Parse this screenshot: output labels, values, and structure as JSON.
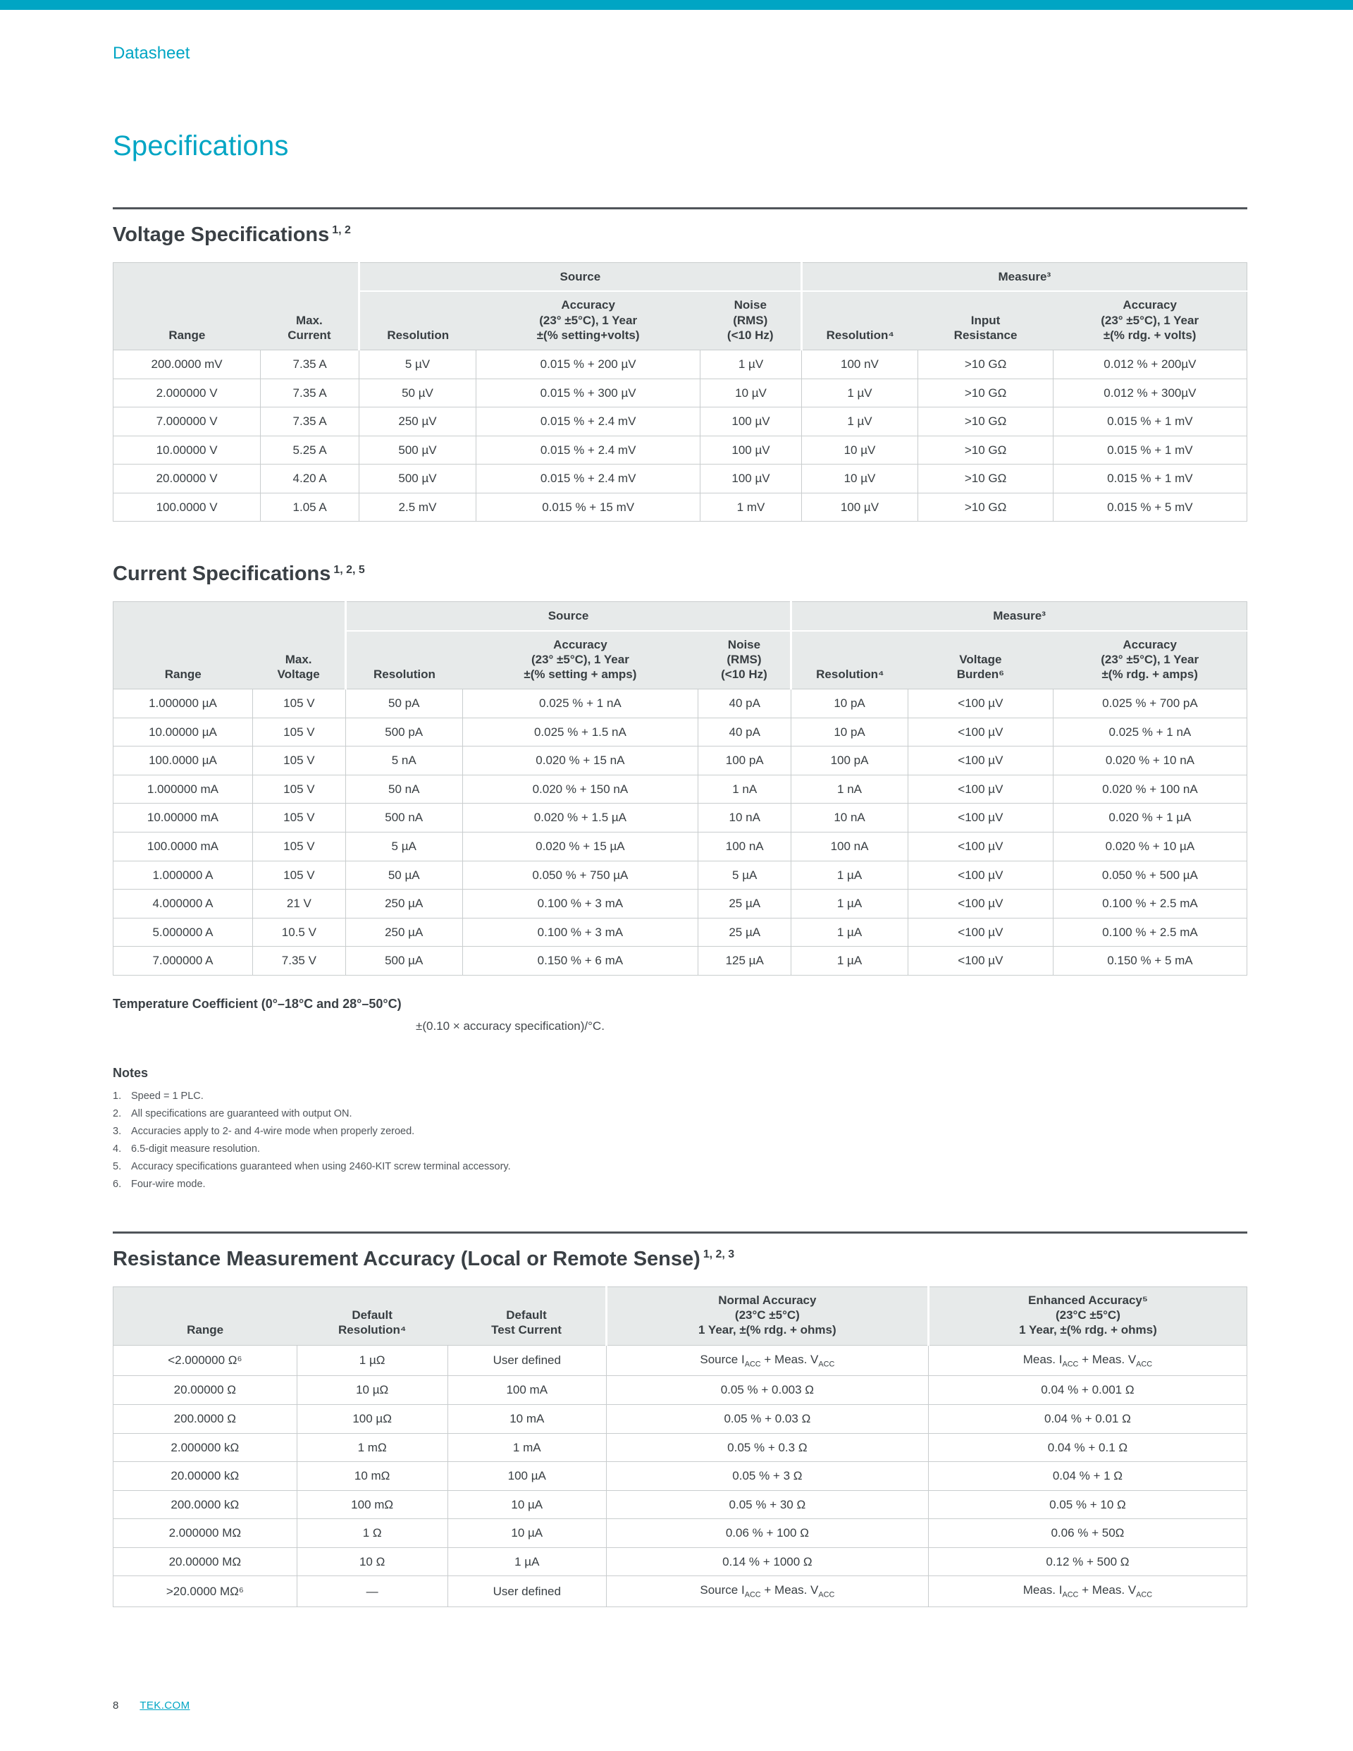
{
  "page": {
    "top_label": "Datasheet",
    "title": "Specifications",
    "footer": {
      "page_number": "8",
      "site_link": "TEK.COM"
    }
  },
  "colors": {
    "accent": "#00A5C4",
    "table_header_fill": "#E7EAEA",
    "table_border": "#C9CDCE",
    "rule": "#50555A",
    "text": "#383E42"
  },
  "voltage_table": {
    "heading": "Voltage Specifications",
    "heading_sup": "1, 2",
    "group_source": "Source",
    "group_measure": "Measure³",
    "headers": [
      "Range",
      "Max.\nCurrent",
      "Resolution",
      "Accuracy\n(23° ±5°C), 1 Year\n±(% setting+volts)",
      "Noise\n(RMS)\n(<10 Hz)",
      "Resolution⁴",
      "Input\nResistance",
      "Accuracy\n(23° ±5°C), 1 Year\n±(% rdg. + volts)"
    ],
    "rows": [
      [
        "200.0000 mV",
        "7.35 A",
        "5 µV",
        "0.015 % + 200 µV",
        "1 µV",
        "100 nV",
        ">10 GΩ",
        "0.012 % + 200µV"
      ],
      [
        "2.000000 V",
        "7.35 A",
        "50 µV",
        "0.015 % + 300 µV",
        "10 µV",
        "1 µV",
        ">10 GΩ",
        "0.012 % + 300µV"
      ],
      [
        "7.000000 V",
        "7.35 A",
        "250 µV",
        "0.015 % + 2.4 mV",
        "100 µV",
        "1 µV",
        ">10 GΩ",
        "0.015 % + 1 mV"
      ],
      [
        "10.00000 V",
        "5.25 A",
        "500 µV",
        "0.015 % + 2.4 mV",
        "100 µV",
        "10 µV",
        ">10 GΩ",
        "0.015 % + 1 mV"
      ],
      [
        "20.00000 V",
        "4.20 A",
        "500 µV",
        "0.015 % + 2.4 mV",
        "100 µV",
        "10 µV",
        ">10 GΩ",
        "0.015 % + 1 mV"
      ],
      [
        "100.0000 V",
        "1.05 A",
        "2.5 mV",
        "0.015 % + 15 mV",
        "1 mV",
        "100 µV",
        ">10 GΩ",
        "0.015 % + 5 mV"
      ]
    ]
  },
  "current_table": {
    "heading": "Current Specifications",
    "heading_sup": "1, 2, 5",
    "group_source": "Source",
    "group_measure": "Measure³",
    "headers": [
      "Range",
      "Max.\nVoltage",
      "Resolution",
      "Accuracy\n(23° ±5°C), 1 Year\n±(% setting + amps)",
      "Noise\n(RMS)\n(<10 Hz)",
      "Resolution⁴",
      "Voltage\nBurden⁶",
      "Accuracy\n(23° ±5°C), 1 Year\n±(% rdg. + amps)"
    ],
    "rows": [
      [
        "1.000000 µA",
        "105 V",
        "50 pA",
        "0.025 % + 1 nA",
        "40 pA",
        "10 pA",
        "<100 µV",
        "0.025 % + 700 pA"
      ],
      [
        "10.00000 µA",
        "105 V",
        "500 pA",
        "0.025 % + 1.5 nA",
        "40 pA",
        "10 pA",
        "<100 µV",
        "0.025 % + 1 nA"
      ],
      [
        "100.0000 µA",
        "105 V",
        "5 nA",
        "0.020 % + 15 nA",
        "100 pA",
        "100 pA",
        "<100 µV",
        "0.020 % + 10 nA"
      ],
      [
        "1.000000 mA",
        "105 V",
        "50 nA",
        "0.020 % + 150 nA",
        "1 nA",
        "1 nA",
        "<100 µV",
        "0.020 % + 100 nA"
      ],
      [
        "10.00000 mA",
        "105 V",
        "500 nA",
        "0.020 % + 1.5 µA",
        "10 nA",
        "10 nA",
        "<100 µV",
        "0.020 % + 1 µA"
      ],
      [
        "100.0000 mA",
        "105 V",
        "5 µA",
        "0.020 % + 15 µA",
        "100 nA",
        "100 nA",
        "<100 µV",
        "0.020 % + 10 µA"
      ],
      [
        "1.000000 A",
        "105 V",
        "50 µA",
        "0.050 % + 750 µA",
        "5 µA",
        "1 µA",
        "<100 µV",
        "0.050 % + 500 µA"
      ],
      [
        "4.000000 A",
        "21 V",
        "250 µA",
        "0.100 % + 3 mA",
        "25 µA",
        "1 µA",
        "<100 µV",
        "0.100 % + 2.5 mA"
      ],
      [
        "5.000000 A",
        "10.5 V",
        "250 µA",
        "0.100 % + 3 mA",
        "25 µA",
        "1 µA",
        "<100 µV",
        "0.100 % + 2.5 mA"
      ],
      [
        "7.000000 A",
        "7.35 V",
        "500 µA",
        "0.150 % + 6 mA",
        "125 µA",
        "1 µA",
        "<100 µV",
        "0.150 % + 5 mA"
      ]
    ]
  },
  "temperature_coefficient": {
    "label": "Temperature Coefficient (0°–18°C and 28°–50°C)",
    "value": "±(0.10 × accuracy specification)/°C."
  },
  "notes": {
    "title": "Notes",
    "items": [
      {
        "num": "1.",
        "text": "Speed = 1 PLC."
      },
      {
        "num": "2.",
        "text": "All specifications are guaranteed with output ON."
      },
      {
        "num": "3.",
        "text": "Accuracies apply to 2- and 4-wire mode when properly zeroed."
      },
      {
        "num": "4.",
        "text": "6.5-digit measure resolution."
      },
      {
        "num": "5.",
        "text": "Accuracy specifications guaranteed when using 2460-KIT screw terminal accessory."
      },
      {
        "num": "6.",
        "text": "Four-wire mode."
      }
    ]
  },
  "resistance_table": {
    "heading": "Resistance Measurement Accuracy (Local or Remote Sense)",
    "heading_sup": "1, 2, 3",
    "headers": [
      "Range",
      "Default\nResolution⁴",
      "Default\nTest Current",
      "Normal Accuracy\n(23°C ±5°C)\n1 Year, ±(% rdg. + ohms)",
      "Enhanced Accuracy⁵\n(23°C ±5°C)\n1 Year, ±(% rdg. + ohms)"
    ],
    "rows": [
      [
        "<2.000000 Ω⁶",
        "1 µΩ",
        "User defined",
        "Source I~ACC~ + Meas. V~ACC~",
        "Meas. I~ACC~ + Meas. V~ACC~"
      ],
      [
        "20.00000 Ω",
        "10 µΩ",
        "100 mA",
        "0.05 % + 0.003 Ω",
        "0.04 % + 0.001 Ω"
      ],
      [
        "200.0000 Ω",
        "100 µΩ",
        "10 mA",
        "0.05 % + 0.03 Ω",
        "0.04 % + 0.01 Ω"
      ],
      [
        "2.000000 kΩ",
        "1 mΩ",
        "1 mA",
        "0.05 % + 0.3 Ω",
        "0.04 % + 0.1 Ω"
      ],
      [
        "20.00000 kΩ",
        "10 mΩ",
        "100 µA",
        "0.05 % + 3 Ω",
        "0.04 % + 1 Ω"
      ],
      [
        "200.0000 kΩ",
        "100 mΩ",
        "10 µA",
        "0.05 % + 30 Ω",
        "0.05 % + 10 Ω"
      ],
      [
        "2.000000 MΩ",
        "1 Ω",
        "10 µA",
        "0.06 % + 100 Ω",
        "0.06 % + 50Ω"
      ],
      [
        "20.00000 MΩ",
        "10 Ω",
        "1 µA",
        "0.14 % + 1000 Ω",
        "0.12 % + 500 Ω"
      ],
      [
        ">20.0000 MΩ⁶",
        "—",
        "User defined",
        "Source I~ACC~ + Meas. V~ACC~",
        "Meas. I~ACC~ + Meas. V~ACC~"
      ]
    ]
  }
}
